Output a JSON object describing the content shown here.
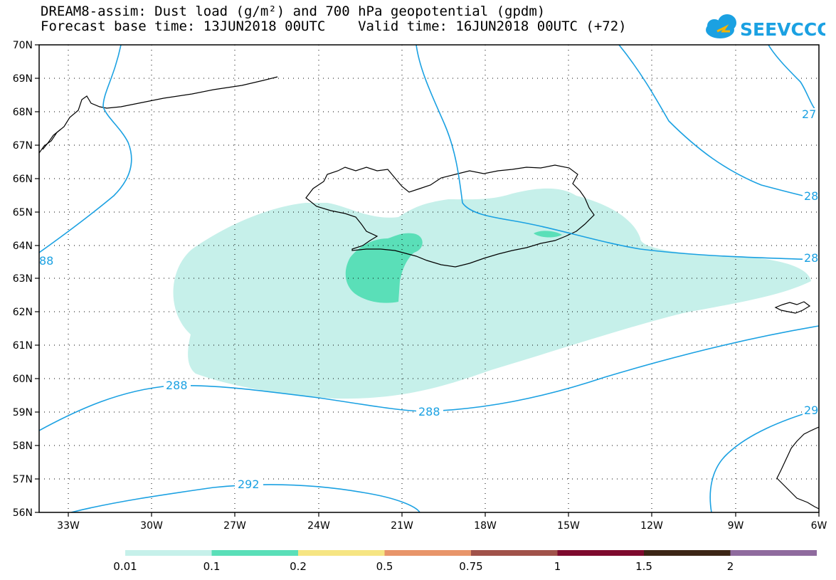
{
  "header": {
    "title_line1": "DREAM8-assim: Dust load (g/m²) and 700 hPa geopotential (gpdm)",
    "title_line2": "Forecast base time: 13JUN2018 00UTC    Valid time: 16JUN2018 00UTC (+72)"
  },
  "logo": {
    "text": "SEEVCCC",
    "icon": "cloud-icon",
    "color": "#1ba1e2"
  },
  "map": {
    "lon_labels": [
      "33W",
      "30W",
      "27W",
      "24W",
      "21W",
      "18W",
      "15W",
      "12W",
      "9W",
      "6W"
    ],
    "lat_labels": [
      "56N",
      "57N",
      "58N",
      "59N",
      "60N",
      "61N",
      "62N",
      "63N",
      "64N",
      "65N",
      "66N",
      "67N",
      "68N",
      "69N",
      "70N"
    ],
    "contour_labels": [
      {
        "id": "c288-a",
        "text": "288"
      },
      {
        "id": "c288-b",
        "text": "288"
      },
      {
        "id": "c292",
        "text": "292"
      },
      {
        "id": "c288-left",
        "text": "88"
      },
      {
        "id": "c28-right1",
        "text": "28"
      },
      {
        "id": "c28-right2",
        "text": "28"
      },
      {
        "id": "c27-right",
        "text": "27"
      },
      {
        "id": "c29-right",
        "text": "29"
      }
    ],
    "colors": {
      "dust_low": "#c6f0ea",
      "dust_mid": "#5adfb8",
      "contour": "#1ba1e2",
      "coastline": "#000000"
    }
  },
  "legend": {
    "bins": [
      {
        "color": "#c6f0ea"
      },
      {
        "color": "#5adfb8"
      },
      {
        "color": "#f6e583"
      },
      {
        "color": "#e8956a"
      },
      {
        "color": "#a1524a"
      },
      {
        "color": "#7e0a2e"
      },
      {
        "color": "#3c2515"
      },
      {
        "color": "#8f6b9e"
      }
    ],
    "labels": [
      "0.01",
      "0.1",
      "0.2",
      "0.5",
      "0.75",
      "1",
      "1.5",
      "2"
    ]
  }
}
